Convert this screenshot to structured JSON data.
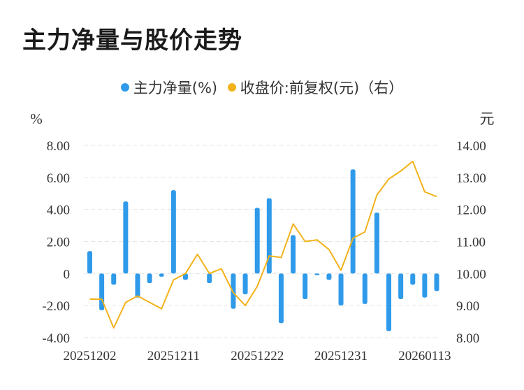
{
  "title": "主力净量与股价走势",
  "legend": {
    "bar_label": "主力净量(%)",
    "line_label": "收盘价:前复权(元)（右）"
  },
  "colors": {
    "bar": "#2f9ae9",
    "line": "#f2b21a",
    "grid": "#e6e6e6",
    "text": "#333333"
  },
  "chart_data": {
    "type": "bar",
    "left_unit": "%",
    "right_unit": "元",
    "left_axis": {
      "min": -4,
      "max": 8,
      "ticks": [
        "8.00",
        "6.00",
        "4.00",
        "2.00",
        "0",
        "-2.00",
        "-4.00"
      ]
    },
    "right_axis": {
      "min": 8,
      "max": 14,
      "ticks": [
        "14.00",
        "13.00",
        "12.00",
        "11.00",
        "10.00",
        "9.00",
        "8.00"
      ]
    },
    "x_tick_labels": [
      "20251202",
      "20251211",
      "20251222",
      "20251231",
      "20260113"
    ],
    "x_tick_indices": [
      0,
      7,
      14,
      21,
      28
    ],
    "series": [
      {
        "name": "主力净量(%)",
        "type": "bar",
        "values": [
          1.4,
          -2.3,
          -0.7,
          4.5,
          -1.5,
          -0.6,
          -0.2,
          5.2,
          -0.4,
          0.0,
          -0.6,
          0.0,
          -2.2,
          -1.3,
          4.1,
          4.7,
          -3.1,
          2.4,
          -1.6,
          -0.1,
          -0.4,
          -2.0,
          6.5,
          -1.9,
          3.8,
          -3.6,
          -1.6,
          -0.7,
          -1.5,
          -1.1
        ]
      },
      {
        "name": "收盘价:前复权(元)（右）",
        "type": "line",
        "values": [
          9.2,
          9.2,
          8.3,
          9.1,
          9.3,
          9.1,
          8.9,
          9.8,
          10.0,
          10.6,
          10.0,
          10.15,
          9.4,
          9.0,
          9.6,
          10.55,
          10.5,
          11.55,
          11.0,
          11.05,
          10.75,
          10.1,
          11.1,
          11.3,
          12.45,
          12.95,
          13.2,
          13.5,
          12.55,
          12.4
        ]
      }
    ]
  }
}
